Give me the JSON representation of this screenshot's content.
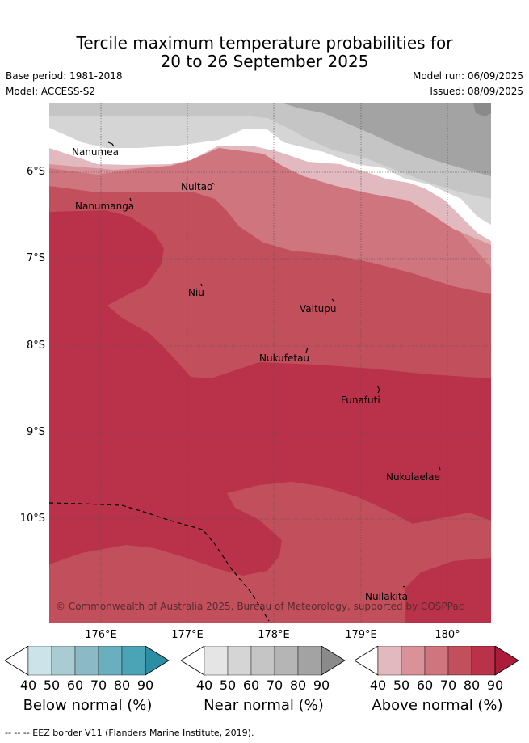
{
  "header": {
    "title_line1": "Tercile maximum temperature probabilities for",
    "title_line2": "20 to 26 September 2025",
    "base_period": "Base period: 1981-2018",
    "model": "Model: ACCESS-S2",
    "model_run": "Model run: 06/09/2025",
    "issued": "Issued: 08/09/2025"
  },
  "map": {
    "lat_labels": [
      "6°S",
      "7°S",
      "8°S",
      "9°S",
      "10°S"
    ],
    "lon_labels": [
      "176°E",
      "177°E",
      "178°E",
      "179°E",
      "180°"
    ],
    "places": [
      "Nanumea",
      "Nuitao",
      "Nanumanga",
      "Niu",
      "Vaitupu",
      "Nukufetau",
      "Funafuti",
      "Nukulaelae",
      "Nuilakita"
    ],
    "copyright": "© Commonwealth of Australia 2025, Bureau of Meteorology, supported by COSPPac"
  },
  "colorbars": {
    "ticks": [
      "40",
      "50",
      "60",
      "70",
      "80",
      "90"
    ],
    "below": {
      "title": "Below normal (%)",
      "colors": [
        "#ffffff",
        "#cce3ea",
        "#a9cbd2",
        "#8bbac6",
        "#6aafbf",
        "#4aa4b5",
        "#2c8ea4"
      ]
    },
    "near": {
      "title": "Near normal (%)",
      "colors": [
        "#ffffff",
        "#e5e5e5",
        "#d5d5d5",
        "#c5c5c5",
        "#b5b5b5",
        "#a3a3a3",
        "#8a8a8a"
      ]
    },
    "above": {
      "title": "Above normal (%)",
      "colors": [
        "#ffffff",
        "#e2b9bf",
        "#d99299",
        "#cf757d",
        "#c2505c",
        "#b93249",
        "#ad1a3a"
      ]
    }
  },
  "legend": {
    "eez": "-- -- -- EEZ border V11 (Flanders Marine Institute, 2019)."
  }
}
